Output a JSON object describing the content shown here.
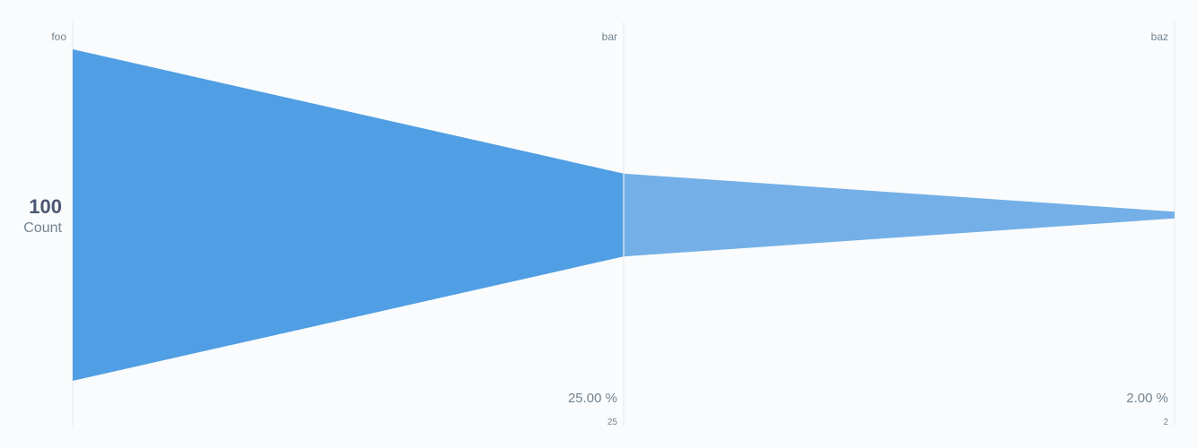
{
  "chart_data": {
    "type": "funnel",
    "metric": {
      "value": "100",
      "label": "Count"
    },
    "steps": [
      {
        "name": "foo",
        "value": 100,
        "percent_label": "",
        "count_label": ""
      },
      {
        "name": "bar",
        "value": 25,
        "percent_label": "25.00 %",
        "count_label": "25"
      },
      {
        "name": "baz",
        "value": 2,
        "percent_label": "2.00 %",
        "count_label": "2"
      }
    ],
    "colors": [
      "#509ee3",
      "#74b0e7"
    ]
  }
}
